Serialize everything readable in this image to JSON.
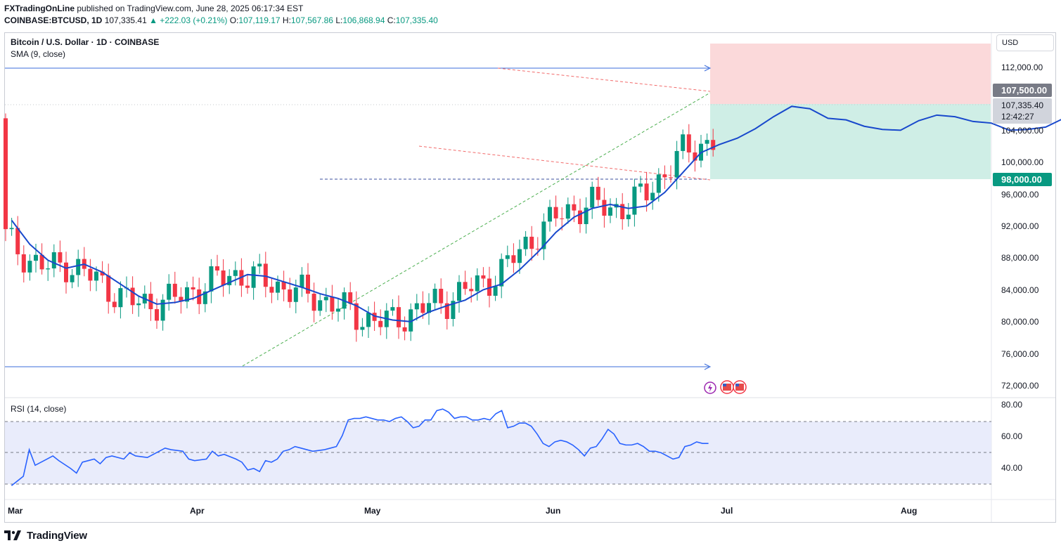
{
  "header": {
    "publisher": "FXTradingOnLine",
    "published_text": "published on TradingView.com, June 28, 2025 06:17:34 EST",
    "symbol": "COINBASE:BTCUSD, 1D",
    "last": "107,335.41",
    "change": "▲ +222.03 (+0.21%)",
    "ohlc": {
      "o_label": "O:",
      "o": "107,119.17",
      "h_label": "H:",
      "h": "107,567.86",
      "l_label": "L:",
      "l": "106,868.94",
      "c_label": "C:",
      "c": "107,335.40"
    }
  },
  "legend": {
    "instrument": "Bitcoin / U.S. Dollar · 1D · COINBASE",
    "sma": "SMA (9, close)",
    "rsi": "RSI (14, close)"
  },
  "currency_button": "USD",
  "price_axis": {
    "ticks": [
      "112,000.00",
      "104,000.00",
      "100,000.00",
      "96,000.00",
      "92,000.00",
      "88,000.00",
      "84,000.00",
      "80,000.00",
      "76,000.00",
      "72,000.00"
    ],
    "target_label": "107,500.00",
    "last_price_label": "107,335.40",
    "countdown": "12:42:27",
    "stop_label": "98,000.00"
  },
  "rsi_axis": {
    "ticks": [
      "80.00",
      "60.00",
      "40.00"
    ]
  },
  "time_axis": {
    "labels": [
      "Mar",
      "Apr",
      "May",
      "Jun",
      "Jul",
      "Aug"
    ]
  },
  "footer": {
    "brand": "TradingView"
  },
  "colors": {
    "up": "#089981",
    "down": "#f23645",
    "sma": "#1848cc",
    "rsi": "#2962ff",
    "target_zone": "#fbd9da",
    "stop_zone": "#cfeee6",
    "trend": "#3b6ddb",
    "green_line": "#4caf50",
    "red_dash": "#f26b6b"
  },
  "chart_data": [
    {
      "type": "candlestick",
      "title": "Bitcoin / U.S. Dollar · 1D · COINBASE",
      "x_range": [
        "2025-02-28",
        "2025-08-15"
      ],
      "ylim": [
        70000,
        115000
      ],
      "key_levels": {
        "resistance": 112000,
        "support": 74500,
        "target": 107500,
        "stop": 98000
      },
      "series": [
        {
          "name": "SMA (9, close)",
          "values": [
            [
              1,
              93000
            ],
            [
              4,
              90000
            ],
            [
              7,
              88000
            ],
            [
              10,
              87000
            ],
            [
              13,
              87500
            ],
            [
              16,
              86500
            ],
            [
              19,
              85000
            ],
            [
              22,
              83500
            ],
            [
              25,
              82500
            ],
            [
              28,
              82700
            ],
            [
              31,
              83200
            ],
            [
              34,
              84200
            ],
            [
              37,
              85200
            ],
            [
              40,
              86200
            ],
            [
              43,
              86000
            ],
            [
              46,
              85300
            ],
            [
              49,
              84600
            ],
            [
              52,
              83800
            ],
            [
              55,
              83200
            ],
            [
              58,
              82300
            ],
            [
              61,
              81000
            ],
            [
              64,
              80500
            ],
            [
              67,
              80300
            ],
            [
              70,
              81500
            ],
            [
              73,
              82300
            ],
            [
              76,
              83000
            ],
            [
              79,
              84300
            ],
            [
              82,
              85000
            ],
            [
              85,
              86800
            ],
            [
              88,
              89000
            ],
            [
              91,
              91500
            ],
            [
              94,
              93400
            ],
            [
              97,
              94500
            ],
            [
              100,
              95000
            ],
            [
              103,
              94500
            ],
            [
              106,
              94800
            ],
            [
              109,
              96500
            ],
            [
              112,
              99000
            ],
            [
              115,
              101500
            ],
            [
              118,
              102500
            ],
            [
              121,
              103300
            ],
            [
              124,
              104500
            ],
            [
              127,
              106000
            ],
            [
              130,
              107300
            ],
            [
              133,
              107000
            ],
            [
              136,
              105800
            ],
            [
              139,
              105600
            ],
            [
              142,
              104800
            ],
            [
              145,
              104400
            ],
            [
              148,
              104300
            ],
            [
              151,
              105500
            ],
            [
              154,
              106200
            ],
            [
              157,
              106000
            ],
            [
              160,
              105400
            ],
            [
              163,
              105200
            ],
            [
              166,
              104300
            ],
            [
              169,
              104400
            ],
            [
              172,
              104700
            ],
            [
              175,
              105800
            ]
          ]
        }
      ]
    },
    {
      "type": "line",
      "title": "RSI (14, close)",
      "ylim": [
        25,
        85
      ],
      "bands": [
        30,
        50,
        70
      ],
      "series": [
        {
          "name": "RSI (14, close)",
          "values": [
            [
              1,
              29
            ],
            [
              3,
              35
            ],
            [
              4,
              52
            ],
            [
              5,
              42
            ],
            [
              7,
              46
            ],
            [
              8,
              48
            ],
            [
              9,
              45
            ],
            [
              11,
              40
            ],
            [
              12,
              37
            ],
            [
              13,
              44
            ],
            [
              15,
              46
            ],
            [
              16,
              43
            ],
            [
              17,
              47
            ],
            [
              18,
              48
            ],
            [
              20,
              46
            ],
            [
              21,
              50
            ],
            [
              22,
              48
            ],
            [
              24,
              47
            ],
            [
              26,
              51
            ],
            [
              27,
              53
            ],
            [
              28,
              52
            ],
            [
              30,
              51
            ],
            [
              31,
              46
            ],
            [
              32,
              45
            ],
            [
              34,
              46
            ],
            [
              35,
              51
            ],
            [
              36,
              48
            ],
            [
              37,
              49
            ],
            [
              39,
              46
            ],
            [
              40,
              44
            ],
            [
              41,
              39
            ],
            [
              42,
              40
            ],
            [
              43,
              38
            ],
            [
              44,
              45
            ],
            [
              45,
              44
            ],
            [
              46,
              46
            ],
            [
              47,
              51
            ],
            [
              48,
              52
            ],
            [
              49,
              54
            ],
            [
              50,
              53
            ],
            [
              51,
              52
            ],
            [
              52,
              51
            ],
            [
              54,
              52
            ],
            [
              55,
              53
            ],
            [
              56,
              54
            ],
            [
              57,
              61
            ],
            [
              58,
              71
            ],
            [
              59,
              72
            ],
            [
              60,
              72
            ],
            [
              61,
              73
            ],
            [
              62,
              72
            ],
            [
              63,
              71
            ],
            [
              64,
              71
            ],
            [
              65,
              70
            ],
            [
              66,
              72
            ],
            [
              67,
              73
            ],
            [
              68,
              70
            ],
            [
              69,
              66
            ],
            [
              70,
              67
            ],
            [
              71,
              71
            ],
            [
              72,
              71
            ],
            [
              73,
              77
            ],
            [
              74,
              78
            ],
            [
              75,
              76
            ],
            [
              76,
              72
            ],
            [
              77,
              73
            ],
            [
              78,
              73
            ],
            [
              79,
              71
            ],
            [
              80,
              71
            ],
            [
              81,
              72
            ],
            [
              82,
              71
            ],
            [
              83,
              75
            ],
            [
              84,
              77
            ],
            [
              85,
              66
            ],
            [
              86,
              67
            ],
            [
              87,
              69
            ],
            [
              88,
              69
            ],
            [
              89,
              67
            ],
            [
              90,
              62
            ],
            [
              91,
              56
            ],
            [
              92,
              54
            ],
            [
              93,
              57
            ],
            [
              94,
              58
            ],
            [
              95,
              57
            ],
            [
              96,
              55
            ],
            [
              97,
              52
            ],
            [
              98,
              48
            ],
            [
              99,
              53
            ],
            [
              100,
              54
            ],
            [
              101,
              59
            ],
            [
              102,
              65
            ],
            [
              103,
              62
            ],
            [
              104,
              56
            ],
            [
              105,
              55
            ],
            [
              106,
              55
            ],
            [
              107,
              56
            ],
            [
              108,
              54
            ],
            [
              109,
              51
            ],
            [
              110,
              51
            ],
            [
              111,
              50
            ],
            [
              112,
              48
            ],
            [
              113,
              46
            ],
            [
              114,
              47
            ],
            [
              115,
              54
            ],
            [
              116,
              55
            ],
            [
              117,
              57
            ],
            [
              118,
              56
            ],
            [
              119,
              56
            ]
          ]
        }
      ]
    }
  ]
}
